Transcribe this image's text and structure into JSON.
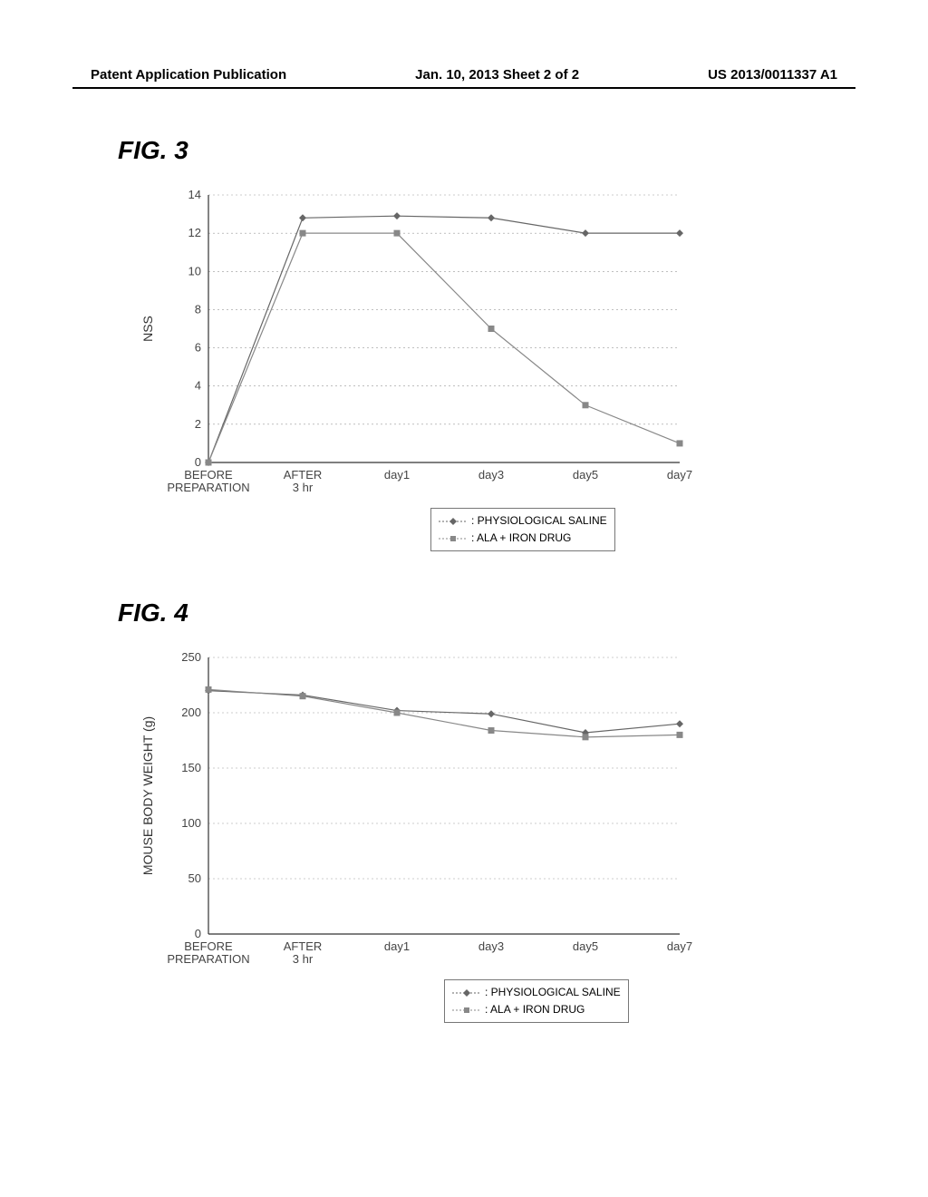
{
  "header": {
    "left": "Patent Application Publication",
    "center": "Jan. 10, 2013  Sheet 2 of 2",
    "right": "US 2013/0011337 A1"
  },
  "fig3": {
    "label": "FIG. 3",
    "type": "line",
    "ylabel": "NSS",
    "ylim": [
      0,
      14
    ],
    "ytick_step": 2,
    "categories": [
      "BEFORE\nPREPARATION",
      "AFTER\n3 hr",
      "day1",
      "day3",
      "day5",
      "day7"
    ],
    "series": [
      {
        "name": "PHYSIOLOGICAL SALINE",
        "marker": "diamond",
        "color": "#666666",
        "values": [
          0,
          12.8,
          12.9,
          12.8,
          12.0,
          12.0
        ]
      },
      {
        "name": "ALA + IRON DRUG",
        "marker": "square",
        "color": "#888888",
        "values": [
          0,
          12.0,
          12.0,
          7.0,
          3.0,
          1.0
        ]
      }
    ],
    "grid_color": "#999999",
    "axis_color": "#333333",
    "background_color": "#ffffff",
    "tick_fontsize": 13,
    "label_fontsize": 14
  },
  "fig4": {
    "label": "FIG. 4",
    "type": "line",
    "ylabel": "MOUSE BODY WEIGHT (g)",
    "ylim": [
      0,
      250
    ],
    "ytick_step": 50,
    "categories": [
      "BEFORE\nPREPARATION",
      "AFTER\n3 hr",
      "day1",
      "day3",
      "day5",
      "day7"
    ],
    "series": [
      {
        "name": "PHYSIOLOGICAL SALINE",
        "marker": "diamond",
        "color": "#666666",
        "values": [
          220,
          216,
          202,
          199,
          182,
          190
        ]
      },
      {
        "name": "ALA + IRON DRUG",
        "marker": "square",
        "color": "#888888",
        "values": [
          221,
          215,
          200,
          184,
          178,
          180
        ]
      }
    ],
    "grid_color": "#999999",
    "axis_color": "#333333",
    "background_color": "#ffffff",
    "tick_fontsize": 13,
    "label_fontsize": 14
  }
}
